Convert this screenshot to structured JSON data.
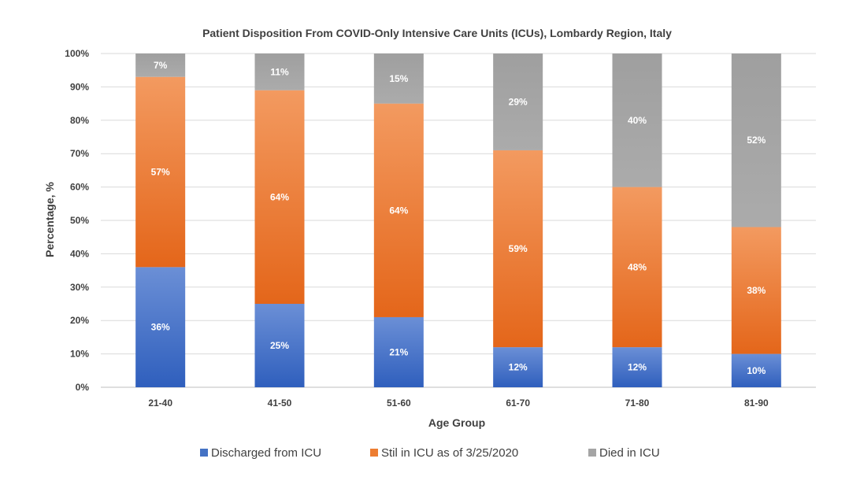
{
  "chart_data": {
    "type": "bar",
    "stacked": true,
    "title": "Patient Disposition From COVID-Only Intensive Care Units (ICUs), Lombardy Region, Italy",
    "xlabel": "Age Group",
    "ylabel": "Percentage, %",
    "ylim": [
      0,
      100
    ],
    "yticks": [
      "0%",
      "10%",
      "20%",
      "30%",
      "40%",
      "50%",
      "60%",
      "70%",
      "80%",
      "90%",
      "100%"
    ],
    "categories": [
      "21-40",
      "41-50",
      "51-60",
      "61-70",
      "71-80",
      "81-90"
    ],
    "series": [
      {
        "name": "Discharged from ICU",
        "color": "#4472c4",
        "values": [
          36,
          25,
          21,
          12,
          12,
          10
        ]
      },
      {
        "name": "Stil in ICU as of 3/25/2020",
        "color": "#ed7d31",
        "values": [
          57,
          64,
          64,
          59,
          48,
          38
        ]
      },
      {
        "name": "Died in ICU",
        "color": "#a5a5a5",
        "values": [
          7,
          11,
          15,
          29,
          40,
          52
        ]
      }
    ],
    "grid": true,
    "legend": "bottom"
  }
}
